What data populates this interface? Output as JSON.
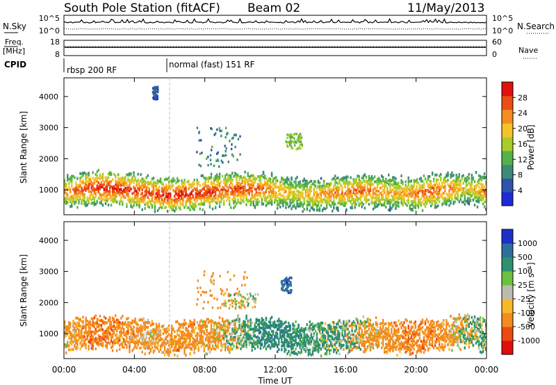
{
  "header": {
    "station": "South Pole Station (fitACF)",
    "beam": "Beam 02",
    "date": "11/May/2013"
  },
  "noise_panel": {
    "left_label": "N.Sky",
    "right_label": "N.Search",
    "left_ticks": [
      "10^5",
      "10^0"
    ],
    "right_ticks": [
      "10^5",
      "10^0"
    ]
  },
  "freq_panel": {
    "left_label_1": "Freq.",
    "left_label_2": "[MHz]",
    "right_label": "Nave",
    "left_ticks": [
      "18",
      "8"
    ],
    "right_ticks": [
      "60",
      "0"
    ]
  },
  "cpid_panel": {
    "label": "CPID",
    "segments": [
      {
        "name": "rbsp 200 RF",
        "start_hour": 0
      },
      {
        "name": "normal (fast) 151 RF",
        "start_hour": 6
      }
    ]
  },
  "x_axis": {
    "label": "Time UT",
    "ticks": [
      "00:00",
      "04:00",
      "08:00",
      "12:00",
      "16:00",
      "20:00",
      "00:00"
    ],
    "range_hours": [
      0,
      24
    ]
  },
  "y_axis": {
    "label": "Slant Range [km]",
    "ticks": [
      "1000",
      "2000",
      "3000",
      "4000"
    ],
    "range_km": [
      200,
      4600
    ]
  },
  "power_colorbar": {
    "label": "Power [dB]",
    "ticks": [
      "4",
      "8",
      "12",
      "16",
      "20",
      "24",
      "28"
    ],
    "colors": [
      "#1c2bd6",
      "#3053a8",
      "#3d8a7a",
      "#56b04a",
      "#a8cc2a",
      "#f6c22a",
      "#f38d1f",
      "#ec4d15",
      "#e1110c"
    ]
  },
  "velocity_colorbar": {
    "label": "Velocity [m s⁻¹]",
    "ticks": [
      "1000",
      "500",
      "100",
      "25",
      "-25",
      "-100",
      "-500",
      "-1000"
    ],
    "colors": [
      "#1f2fc9",
      "#2d6f9a",
      "#2f8f6e",
      "#6bc040",
      "#bbbcb0",
      "#f6b82a",
      "#f38b1e",
      "#ec4a12",
      "#e00e0c"
    ]
  },
  "chart_data": [
    {
      "type": "heatmap",
      "title": "Power",
      "xlabel": "Time UT",
      "ylabel": "Slant Range [km]",
      "xlim_hours": [
        0,
        24
      ],
      "ylim_km": [
        200,
        4600
      ],
      "zlabel": "Power [dB]",
      "zlim": [
        0,
        30
      ],
      "main_band_center_km": [
        900,
        1000,
        1050,
        1000,
        950,
        850,
        800,
        850,
        900,
        950,
        1000,
        1000,
        950,
        850,
        800,
        850,
        900,
        950,
        900,
        850,
        850,
        950,
        1000,
        1050,
        900
      ],
      "main_band_peak_dB": [
        22,
        26,
        28,
        28,
        27,
        26,
        28,
        28,
        27,
        26,
        26,
        25,
        22,
        18,
        20,
        22,
        23,
        24,
        22,
        20,
        24,
        25,
        22,
        18,
        24
      ],
      "echo_patches": [
        {
          "t_hours": [
            7.5,
            10.0
          ],
          "range_km": [
            1700,
            3000
          ],
          "power_dB": 8
        },
        {
          "t_hours": [
            12.5,
            13.5
          ],
          "range_km": [
            2300,
            2800
          ],
          "power_dB": 14
        },
        {
          "t_hours": [
            5.0,
            5.3
          ],
          "range_km": [
            3900,
            4300
          ],
          "power_dB": 6
        }
      ]
    },
    {
      "type": "heatmap",
      "title": "Velocity",
      "xlabel": "Time UT",
      "ylabel": "Slant Range [km]",
      "xlim_hours": [
        0,
        24
      ],
      "ylim_km": [
        200,
        4600
      ],
      "zlabel": "Velocity [m s^-1]",
      "zlim": [
        -1000,
        1000
      ],
      "main_band_center_km": [
        900,
        1000,
        1050,
        1000,
        950,
        850,
        800,
        850,
        900,
        950,
        1000,
        1000,
        950,
        850,
        800,
        850,
        900,
        950,
        900,
        850,
        850,
        950,
        1000,
        1050,
        900
      ],
      "main_band_velocity": [
        -150,
        -300,
        -350,
        -300,
        -250,
        -200,
        -250,
        -300,
        -200,
        -150,
        100,
        300,
        400,
        300,
        200,
        150,
        100,
        -100,
        -200,
        -300,
        -350,
        -300,
        -200,
        100,
        200
      ],
      "echo_patches": [
        {
          "t_hours": [
            7.5,
            10.5
          ],
          "range_km": [
            1800,
            3000
          ],
          "velocity": -300
        },
        {
          "t_hours": [
            12.3,
            12.9
          ],
          "range_km": [
            2300,
            2800
          ],
          "velocity": 900
        },
        {
          "t_hours": [
            9.0,
            11.0
          ],
          "range_km": [
            1800,
            2300
          ],
          "velocity": 0
        }
      ]
    }
  ]
}
